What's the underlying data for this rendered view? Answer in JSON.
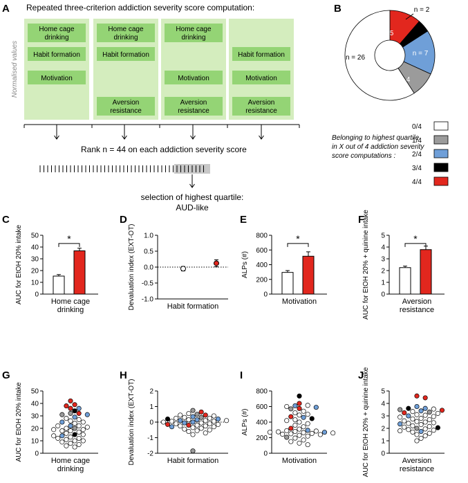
{
  "figure": {
    "panel_labels": [
      "A",
      "B",
      "C",
      "D",
      "E",
      "F",
      "G",
      "H",
      "I",
      "J"
    ],
    "panelA": {
      "title": "Repeated three-criterion addiction severity score computation:",
      "y_label": "Normalised values",
      "criteria": [
        "Home cage drinking",
        "Habit formation",
        "Motivation",
        "Aversion resistance"
      ],
      "columns": [
        {
          "items": [
            "Home cage drinking",
            "Habit formation",
            "Motivation"
          ]
        },
        {
          "items": [
            "Home cage drinking",
            "Habit formation",
            "Aversion resistance"
          ]
        },
        {
          "items": [
            "Home cage drinking",
            "Motivation",
            "Aversion resistance"
          ]
        },
        {
          "items": [
            "Habit formation",
            "Motivation",
            "Aversion resistance"
          ]
        }
      ],
      "rank_text": "Rank n = 44 on each addiction severity score",
      "selection_line1": "selection of highest quartile:",
      "selection_line2": "AUD-like"
    },
    "panelB": {
      "legend_title": [
        "Belonging to highest quartile",
        "in X out of 4 addiction severity",
        "score computations :"
      ],
      "legend": [
        {
          "label": "0/4",
          "color": "#ffffff"
        },
        {
          "label": "1/4",
          "color": "#9b9b9b"
        },
        {
          "label": "2/4",
          "color": "#6f9fd8"
        },
        {
          "label": "3/4",
          "color": "#000000"
        },
        {
          "label": "4/4",
          "color": "#e2271e"
        }
      ]
    }
  },
  "chart_data": [
    {
      "id": "B",
      "type": "pie",
      "slices": [
        {
          "label": "n = 5",
          "value": 5,
          "color": "#e2271e"
        },
        {
          "label": "n = 2",
          "value": 2,
          "color": "#000000"
        },
        {
          "label": "n = 7",
          "value": 7,
          "color": "#6f9fd8"
        },
        {
          "label": "n = 4",
          "value": 4,
          "color": "#9b9b9b"
        },
        {
          "label": "n = 26",
          "value": 26,
          "color": "#ffffff"
        }
      ]
    },
    {
      "id": "C",
      "type": "bar",
      "ylabel": "AUC for EtOH 20% intake",
      "xlabel": [
        "Home cage",
        "drinking"
      ],
      "ylim": [
        0,
        50
      ],
      "ticks": [
        0,
        10,
        20,
        30,
        40,
        50
      ],
      "values": [
        15.3,
        36.8
      ],
      "errors": [
        1.3,
        2.2
      ],
      "sig": "*"
    },
    {
      "id": "D",
      "type": "scatter",
      "ylabel": "Devaluation index (EXT-OT)",
      "xlabel": [
        "Habit formation"
      ],
      "ylim": [
        -1,
        1
      ],
      "ticks": [
        "-1.0",
        "-0.5",
        "0.0",
        "0.5",
        "1.0"
      ],
      "tick_values": [
        -1,
        -0.5,
        0,
        0.5,
        1
      ],
      "values": [
        -0.05,
        0.12
      ],
      "errors": [
        0.07,
        0.11
      ]
    },
    {
      "id": "E",
      "type": "bar",
      "ylabel": "ALPs (#)",
      "xlabel": [
        "Motivation"
      ],
      "ylim": [
        0,
        800
      ],
      "ticks": [
        0,
        200,
        400,
        600,
        800
      ],
      "values": [
        295,
        515
      ],
      "errors": [
        25,
        60
      ],
      "sig": "*"
    },
    {
      "id": "F",
      "type": "bar",
      "ylabel": "AUC for EtOH 20% + quinine intake",
      "xlabel": [
        "Aversion",
        "resistance"
      ],
      "ylim": [
        0,
        5
      ],
      "ticks": [
        0,
        1,
        2,
        3,
        4,
        5
      ],
      "values": [
        2.25,
        3.78
      ],
      "errors": [
        0.13,
        0.3
      ],
      "sig": "*"
    },
    {
      "id": "G",
      "type": "scatter",
      "ylabel": "AUC for EtOH 20% intake",
      "xlabel": [
        "Home cage",
        "drinking"
      ],
      "ylim": [
        0,
        50
      ],
      "ticks": [
        0,
        10,
        20,
        30,
        40,
        50
      ],
      "points": [
        {
          "v": 42,
          "c": 4
        },
        {
          "v": 39,
          "c": 4
        },
        {
          "v": 38,
          "c": 4
        },
        {
          "v": 36,
          "c": 4
        },
        {
          "v": 36,
          "c": 2
        },
        {
          "v": 34,
          "c": 3
        },
        {
          "v": 32,
          "c": 1
        },
        {
          "v": 32,
          "c": 4
        },
        {
          "v": 31,
          "c": 1
        },
        {
          "v": 31,
          "c": 2
        },
        {
          "v": 29,
          "c": 2
        },
        {
          "v": 28,
          "c": 0
        },
        {
          "v": 27,
          "c": 0
        },
        {
          "v": 25,
          "c": 2
        },
        {
          "v": 25,
          "c": 0
        },
        {
          "v": 24,
          "c": 0
        },
        {
          "v": 22,
          "c": 2
        },
        {
          "v": 22,
          "c": 0
        },
        {
          "v": 21,
          "c": 0
        },
        {
          "v": 20,
          "c": 1
        },
        {
          "v": 20,
          "c": 0
        },
        {
          "v": 19,
          "c": 0
        },
        {
          "v": 18,
          "c": 0
        },
        {
          "v": 18,
          "c": 0
        },
        {
          "v": 17,
          "c": 0
        },
        {
          "v": 16,
          "c": 0
        },
        {
          "v": 15,
          "c": 3
        },
        {
          "v": 15,
          "c": 0
        },
        {
          "v": 14,
          "c": 2
        },
        {
          "v": 14,
          "c": 0
        },
        {
          "v": 13,
          "c": 0
        },
        {
          "v": 12,
          "c": 0
        },
        {
          "v": 12,
          "c": 0
        },
        {
          "v": 11,
          "c": 0
        },
        {
          "v": 10,
          "c": 0
        },
        {
          "v": 10,
          "c": 0
        },
        {
          "v": 9,
          "c": 0
        },
        {
          "v": 8,
          "c": 0
        },
        {
          "v": 7,
          "c": 0
        },
        {
          "v": 6,
          "c": 0
        },
        {
          "v": 19,
          "c": 0
        },
        {
          "v": 22,
          "c": 0
        },
        {
          "v": 26,
          "c": 0
        },
        {
          "v": 5,
          "c": 0
        }
      ]
    },
    {
      "id": "H",
      "type": "scatter",
      "ylabel": "Devaluation index (EXT-OT)",
      "xlabel": [
        "Habit formation"
      ],
      "ylim": [
        -2,
        2
      ],
      "ticks": [
        -2,
        -1,
        0,
        1,
        2
      ],
      "points": [
        {
          "v": 0.75,
          "c": 1
        },
        {
          "v": 0.65,
          "c": 4
        },
        {
          "v": 0.55,
          "c": 0
        },
        {
          "v": 0.5,
          "c": 1
        },
        {
          "v": 0.45,
          "c": 4
        },
        {
          "v": 0.45,
          "c": 0
        },
        {
          "v": 0.4,
          "c": 0
        },
        {
          "v": 0.35,
          "c": 2
        },
        {
          "v": 0.3,
          "c": 1
        },
        {
          "v": 0.3,
          "c": 0
        },
        {
          "v": 0.25,
          "c": 0
        },
        {
          "v": 0.2,
          "c": 2
        },
        {
          "v": 0.2,
          "c": 3
        },
        {
          "v": 0.15,
          "c": 2
        },
        {
          "v": 0.15,
          "c": 0
        },
        {
          "v": 0.1,
          "c": 0
        },
        {
          "v": 0.1,
          "c": 2
        },
        {
          "v": 0.05,
          "c": 0
        },
        {
          "v": 0.05,
          "c": 0
        },
        {
          "v": 0.0,
          "c": 2
        },
        {
          "v": 0.0,
          "c": 0
        },
        {
          "v": -0.05,
          "c": 0
        },
        {
          "v": -0.05,
          "c": 2
        },
        {
          "v": -0.1,
          "c": 0
        },
        {
          "v": -0.1,
          "c": 0
        },
        {
          "v": -0.15,
          "c": 0
        },
        {
          "v": -0.15,
          "c": 4
        },
        {
          "v": -0.2,
          "c": 0
        },
        {
          "v": -0.2,
          "c": 4
        },
        {
          "v": -0.25,
          "c": 0
        },
        {
          "v": -0.3,
          "c": 0
        },
        {
          "v": -0.3,
          "c": 2
        },
        {
          "v": -0.35,
          "c": 0
        },
        {
          "v": -0.4,
          "c": 0
        },
        {
          "v": -0.45,
          "c": 0
        },
        {
          "v": -0.5,
          "c": 0
        },
        {
          "v": -0.55,
          "c": 0
        },
        {
          "v": -0.6,
          "c": 0
        },
        {
          "v": -0.7,
          "c": 0
        },
        {
          "v": -0.8,
          "c": 0
        },
        {
          "v": 0.25,
          "c": 0
        },
        {
          "v": -0.25,
          "c": 0
        },
        {
          "v": 0.1,
          "c": 0
        },
        {
          "v": -1.85,
          "c": 1
        }
      ]
    },
    {
      "id": "I",
      "type": "scatter",
      "ylabel": "ALPs (#)",
      "xlabel": [
        "Motivation"
      ],
      "ylim": [
        0,
        800
      ],
      "ticks": [
        0,
        200,
        400,
        600,
        800
      ],
      "points": [
        {
          "v": 735,
          "c": 3
        },
        {
          "v": 640,
          "c": 4
        },
        {
          "v": 615,
          "c": 0
        },
        {
          "v": 610,
          "c": 2
        },
        {
          "v": 600,
          "c": 0
        },
        {
          "v": 590,
          "c": 2
        },
        {
          "v": 575,
          "c": 4
        },
        {
          "v": 570,
          "c": 1
        },
        {
          "v": 540,
          "c": 0
        },
        {
          "v": 520,
          "c": 0
        },
        {
          "v": 490,
          "c": 0
        },
        {
          "v": 470,
          "c": 4
        },
        {
          "v": 460,
          "c": 2
        },
        {
          "v": 445,
          "c": 3
        },
        {
          "v": 430,
          "c": 0
        },
        {
          "v": 420,
          "c": 0
        },
        {
          "v": 400,
          "c": 0
        },
        {
          "v": 380,
          "c": 0
        },
        {
          "v": 360,
          "c": 0
        },
        {
          "v": 340,
          "c": 0
        },
        {
          "v": 320,
          "c": 4
        },
        {
          "v": 310,
          "c": 0
        },
        {
          "v": 295,
          "c": 2
        },
        {
          "v": 285,
          "c": 0
        },
        {
          "v": 280,
          "c": 0
        },
        {
          "v": 275,
          "c": 0
        },
        {
          "v": 270,
          "c": 2
        },
        {
          "v": 265,
          "c": 0
        },
        {
          "v": 260,
          "c": 0
        },
        {
          "v": 255,
          "c": 0
        },
        {
          "v": 250,
          "c": 0
        },
        {
          "v": 245,
          "c": 0
        },
        {
          "v": 240,
          "c": 0
        },
        {
          "v": 230,
          "c": 0
        },
        {
          "v": 220,
          "c": 0
        },
        {
          "v": 205,
          "c": 1
        },
        {
          "v": 195,
          "c": 0
        },
        {
          "v": 170,
          "c": 0
        },
        {
          "v": 150,
          "c": 0
        },
        {
          "v": 130,
          "c": 0
        },
        {
          "v": 110,
          "c": 0
        },
        {
          "v": 270,
          "c": 0
        },
        {
          "v": 290,
          "c": 0
        },
        {
          "v": 500,
          "c": 0
        }
      ]
    },
    {
      "id": "J",
      "type": "scatter",
      "ylabel": "AUC for EtOH 20% + quinine intake",
      "xlabel": [
        "Aversion",
        "resistance"
      ],
      "ylim": [
        0,
        5
      ],
      "ticks": [
        0,
        1,
        2,
        3,
        4,
        5
      ],
      "points": [
        {
          "v": 4.6,
          "c": 4
        },
        {
          "v": 4.45,
          "c": 4
        },
        {
          "v": 3.75,
          "c": 2
        },
        {
          "v": 3.6,
          "c": 2
        },
        {
          "v": 3.6,
          "c": 3
        },
        {
          "v": 3.55,
          "c": 0
        },
        {
          "v": 3.5,
          "c": 1
        },
        {
          "v": 3.45,
          "c": 4
        },
        {
          "v": 3.4,
          "c": 2
        },
        {
          "v": 3.35,
          "c": 0
        },
        {
          "v": 3.3,
          "c": 1
        },
        {
          "v": 3.25,
          "c": 4
        },
        {
          "v": 3.2,
          "c": 0
        },
        {
          "v": 3.1,
          "c": 0
        },
        {
          "v": 3.0,
          "c": 2
        },
        {
          "v": 2.95,
          "c": 0
        },
        {
          "v": 2.9,
          "c": 0
        },
        {
          "v": 2.8,
          "c": 0
        },
        {
          "v": 2.75,
          "c": 0
        },
        {
          "v": 2.7,
          "c": 0
        },
        {
          "v": 2.6,
          "c": 0
        },
        {
          "v": 2.5,
          "c": 0
        },
        {
          "v": 2.45,
          "c": 0
        },
        {
          "v": 2.4,
          "c": 0
        },
        {
          "v": 2.35,
          "c": 2
        },
        {
          "v": 2.3,
          "c": 0
        },
        {
          "v": 2.2,
          "c": 0
        },
        {
          "v": 2.15,
          "c": 0
        },
        {
          "v": 2.1,
          "c": 0
        },
        {
          "v": 2.05,
          "c": 3
        },
        {
          "v": 2.0,
          "c": 1
        },
        {
          "v": 1.95,
          "c": 0
        },
        {
          "v": 1.9,
          "c": 0
        },
        {
          "v": 1.85,
          "c": 0
        },
        {
          "v": 1.8,
          "c": 0
        },
        {
          "v": 1.75,
          "c": 2
        },
        {
          "v": 1.7,
          "c": 0
        },
        {
          "v": 1.6,
          "c": 0
        },
        {
          "v": 1.5,
          "c": 0
        },
        {
          "v": 1.4,
          "c": 0
        },
        {
          "v": 1.2,
          "c": 0
        },
        {
          "v": 1.0,
          "c": 0
        },
        {
          "v": 2.55,
          "c": 0
        },
        {
          "v": 3.05,
          "c": 0
        }
      ]
    }
  ]
}
